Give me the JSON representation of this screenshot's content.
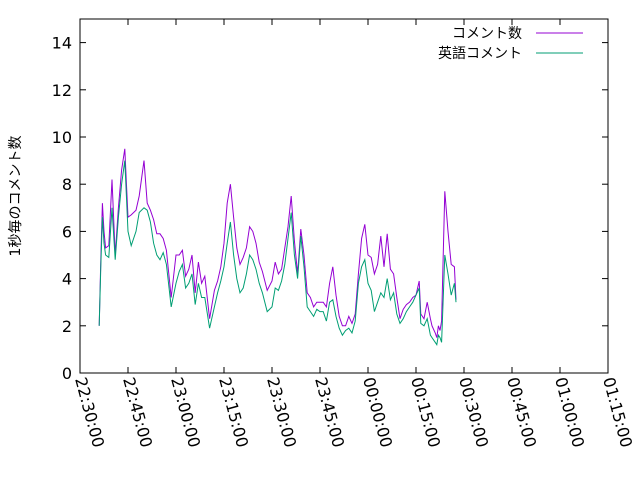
{
  "chart_data": {
    "type": "line",
    "ylabel": "1秒毎のコメント数",
    "ylim": [
      0,
      15
    ],
    "yticks": [
      0,
      2,
      4,
      6,
      8,
      10,
      12,
      14
    ],
    "xlim": [
      "22:30:00",
      "01:15:00"
    ],
    "xticks": [
      "22:30:00",
      "22:45:00",
      "23:00:00",
      "23:15:00",
      "23:30:00",
      "23:45:00",
      "00:00:00",
      "00:15:00",
      "00:30:00",
      "00:45:00",
      "01:00:00",
      "01:15:00"
    ],
    "legend_position": "top-right",
    "grid": false,
    "series": [
      {
        "name": "コメント数",
        "color": "#9400d3",
        "points": [
          [
            "22:36:00",
            2.0
          ],
          [
            "22:36:30",
            4.8
          ],
          [
            "22:37:00",
            7.2
          ],
          [
            "22:37:30",
            6.0
          ],
          [
            "22:38:00",
            5.3
          ],
          [
            "22:39:00",
            5.4
          ],
          [
            "22:40:00",
            8.2
          ],
          [
            "22:41:00",
            5.0
          ],
          [
            "22:42:00",
            7.0
          ],
          [
            "22:43:00",
            8.6
          ],
          [
            "22:44:00",
            9.5
          ],
          [
            "22:45:00",
            6.6
          ],
          [
            "22:46:00",
            6.7
          ],
          [
            "22:47:30",
            6.9
          ],
          [
            "22:48:30",
            7.5
          ],
          [
            "22:50:00",
            9.0
          ],
          [
            "22:51:00",
            7.2
          ],
          [
            "22:52:00",
            6.9
          ],
          [
            "22:53:00",
            6.5
          ],
          [
            "22:54:00",
            5.9
          ],
          [
            "22:55:00",
            5.9
          ],
          [
            "22:56:00",
            5.7
          ],
          [
            "22:57:00",
            5.2
          ],
          [
            "22:58:30",
            3.2
          ],
          [
            "23:00:00",
            5.0
          ],
          [
            "23:01:00",
            5.0
          ],
          [
            "23:02:00",
            5.2
          ],
          [
            "23:03:00",
            4.1
          ],
          [
            "23:04:00",
            4.4
          ],
          [
            "23:05:00",
            5.0
          ],
          [
            "23:06:00",
            3.4
          ],
          [
            "23:07:00",
            4.7
          ],
          [
            "23:08:00",
            3.8
          ],
          [
            "23:09:00",
            4.1
          ],
          [
            "23:10:30",
            2.3
          ],
          [
            "23:12:00",
            3.5
          ],
          [
            "23:13:00",
            3.9
          ],
          [
            "23:14:00",
            4.5
          ],
          [
            "23:15:00",
            5.5
          ],
          [
            "23:16:00",
            7.2
          ],
          [
            "23:17:00",
            8.0
          ],
          [
            "23:18:00",
            6.6
          ],
          [
            "23:19:00",
            5.3
          ],
          [
            "23:20:00",
            4.6
          ],
          [
            "23:21:00",
            4.9
          ],
          [
            "23:22:00",
            5.3
          ],
          [
            "23:23:00",
            6.2
          ],
          [
            "23:24:00",
            6.0
          ],
          [
            "23:25:00",
            5.5
          ],
          [
            "23:26:00",
            4.7
          ],
          [
            "23:27:00",
            4.3
          ],
          [
            "23:28:30",
            3.5
          ],
          [
            "23:30:00",
            3.9
          ],
          [
            "23:31:00",
            4.7
          ],
          [
            "23:32:00",
            4.2
          ],
          [
            "23:33:00",
            4.4
          ],
          [
            "23:34:00",
            5.3
          ],
          [
            "23:35:00",
            6.2
          ],
          [
            "23:36:00",
            7.5
          ],
          [
            "23:37:00",
            5.6
          ],
          [
            "23:38:00",
            4.2
          ],
          [
            "23:39:00",
            6.1
          ],
          [
            "23:40:00",
            5.0
          ],
          [
            "23:41:00",
            3.4
          ],
          [
            "23:42:00",
            3.2
          ],
          [
            "23:43:00",
            2.8
          ],
          [
            "23:44:00",
            3.0
          ],
          [
            "23:45:00",
            3.0
          ],
          [
            "23:46:00",
            3.0
          ],
          [
            "23:47:00",
            2.8
          ],
          [
            "23:48:00",
            3.8
          ],
          [
            "23:49:00",
            4.5
          ],
          [
            "23:50:00",
            3.3
          ],
          [
            "23:51:00",
            2.4
          ],
          [
            "23:52:00",
            2.0
          ],
          [
            "23:53:00",
            2.0
          ],
          [
            "23:54:00",
            2.4
          ],
          [
            "23:55:00",
            2.1
          ],
          [
            "23:56:00",
            2.5
          ],
          [
            "23:57:00",
            4.2
          ],
          [
            "23:58:00",
            5.7
          ],
          [
            "23:59:00",
            6.3
          ],
          [
            "00:00:00",
            5.0
          ],
          [
            "00:01:00",
            4.9
          ],
          [
            "00:02:00",
            4.2
          ],
          [
            "00:03:00",
            4.6
          ],
          [
            "00:04:00",
            5.8
          ],
          [
            "00:05:00",
            4.5
          ],
          [
            "00:06:00",
            5.9
          ],
          [
            "00:07:00",
            4.4
          ],
          [
            "00:08:00",
            4.2
          ],
          [
            "00:09:00",
            3.2
          ],
          [
            "00:10:00",
            2.3
          ],
          [
            "00:11:00",
            2.7
          ],
          [
            "00:12:00",
            2.9
          ],
          [
            "00:13:00",
            3.0
          ],
          [
            "00:14:00",
            3.2
          ],
          [
            "00:15:00",
            3.3
          ],
          [
            "00:16:00",
            3.9
          ],
          [
            "00:16:30",
            2.5
          ],
          [
            "00:17:30",
            2.3
          ],
          [
            "00:18:30",
            3.0
          ],
          [
            "00:19:30",
            2.3
          ],
          [
            "00:20:00",
            2.0
          ],
          [
            "00:21:00",
            1.7
          ],
          [
            "00:21:30",
            1.5
          ],
          [
            "00:22:00",
            2.0
          ],
          [
            "00:22:30",
            1.8
          ],
          [
            "00:23:00",
            2.2
          ],
          [
            "00:24:00",
            7.7
          ],
          [
            "00:25:00",
            6.0
          ],
          [
            "00:26:00",
            4.6
          ],
          [
            "00:27:00",
            4.5
          ],
          [
            "00:27:30",
            3.1
          ]
        ]
      },
      {
        "name": "英語コメント",
        "color": "#009e73",
        "points": [
          [
            "22:36:00",
            2.0
          ],
          [
            "22:36:30",
            4.5
          ],
          [
            "22:37:00",
            6.6
          ],
          [
            "22:37:30",
            5.5
          ],
          [
            "22:38:00",
            5.0
          ],
          [
            "22:39:00",
            4.9
          ],
          [
            "22:40:00",
            7.0
          ],
          [
            "22:41:00",
            4.8
          ],
          [
            "22:42:00",
            6.6
          ],
          [
            "22:43:00",
            8.0
          ],
          [
            "22:44:00",
            9.0
          ],
          [
            "22:45:00",
            6.0
          ],
          [
            "22:46:00",
            5.4
          ],
          [
            "22:47:30",
            6.0
          ],
          [
            "22:48:30",
            6.8
          ],
          [
            "22:50:00",
            7.0
          ],
          [
            "22:51:00",
            6.9
          ],
          [
            "22:52:00",
            6.4
          ],
          [
            "22:53:00",
            5.5
          ],
          [
            "22:54:00",
            5.0
          ],
          [
            "22:55:00",
            4.8
          ],
          [
            "22:56:00",
            5.1
          ],
          [
            "22:57:00",
            4.6
          ],
          [
            "22:58:30",
            2.8
          ],
          [
            "23:00:00",
            3.8
          ],
          [
            "23:01:00",
            4.3
          ],
          [
            "23:02:00",
            4.6
          ],
          [
            "23:03:00",
            3.6
          ],
          [
            "23:04:00",
            3.8
          ],
          [
            "23:05:00",
            4.2
          ],
          [
            "23:06:00",
            2.9
          ],
          [
            "23:07:00",
            3.8
          ],
          [
            "23:08:00",
            3.2
          ],
          [
            "23:09:00",
            3.2
          ],
          [
            "23:10:30",
            1.9
          ],
          [
            "23:12:00",
            2.8
          ],
          [
            "23:13:00",
            3.4
          ],
          [
            "23:14:00",
            3.9
          ],
          [
            "23:15:00",
            4.5
          ],
          [
            "23:16:00",
            5.5
          ],
          [
            "23:17:00",
            6.4
          ],
          [
            "23:18:00",
            5.0
          ],
          [
            "23:19:00",
            4.0
          ],
          [
            "23:20:00",
            3.4
          ],
          [
            "23:21:00",
            3.6
          ],
          [
            "23:22:00",
            4.2
          ],
          [
            "23:23:00",
            5.0
          ],
          [
            "23:24:00",
            4.8
          ],
          [
            "23:25:00",
            4.4
          ],
          [
            "23:26:00",
            3.8
          ],
          [
            "23:27:00",
            3.4
          ],
          [
            "23:28:30",
            2.6
          ],
          [
            "23:30:00",
            2.8
          ],
          [
            "23:31:00",
            3.6
          ],
          [
            "23:32:00",
            3.5
          ],
          [
            "23:33:00",
            3.9
          ],
          [
            "23:34:00",
            4.6
          ],
          [
            "23:35:00",
            5.7
          ],
          [
            "23:36:00",
            6.8
          ],
          [
            "23:37:00",
            5.0
          ],
          [
            "23:38:00",
            4.0
          ],
          [
            "23:39:00",
            5.8
          ],
          [
            "23:40:00",
            4.5
          ],
          [
            "23:41:00",
            2.8
          ],
          [
            "23:42:00",
            2.6
          ],
          [
            "23:43:00",
            2.4
          ],
          [
            "23:44:00",
            2.7
          ],
          [
            "23:45:00",
            2.6
          ],
          [
            "23:46:00",
            2.6
          ],
          [
            "23:47:00",
            2.2
          ],
          [
            "23:48:00",
            3.0
          ],
          [
            "23:49:00",
            3.1
          ],
          [
            "23:50:00",
            2.4
          ],
          [
            "23:51:00",
            1.9
          ],
          [
            "23:52:00",
            1.6
          ],
          [
            "23:53:00",
            1.8
          ],
          [
            "23:54:00",
            1.9
          ],
          [
            "23:55:00",
            1.7
          ],
          [
            "23:56:00",
            2.2
          ],
          [
            "23:57:00",
            3.8
          ],
          [
            "23:58:00",
            4.5
          ],
          [
            "23:59:00",
            4.8
          ],
          [
            "00:00:00",
            3.8
          ],
          [
            "00:01:00",
            3.5
          ],
          [
            "00:02:00",
            2.6
          ],
          [
            "00:03:00",
            3.0
          ],
          [
            "00:04:00",
            3.4
          ],
          [
            "00:05:00",
            3.2
          ],
          [
            "00:06:00",
            4.0
          ],
          [
            "00:07:00",
            3.1
          ],
          [
            "00:08:00",
            3.4
          ],
          [
            "00:09:00",
            2.5
          ],
          [
            "00:10:00",
            2.1
          ],
          [
            "00:11:00",
            2.3
          ],
          [
            "00:12:00",
            2.6
          ],
          [
            "00:13:00",
            2.8
          ],
          [
            "00:14:00",
            3.0
          ],
          [
            "00:15:00",
            3.3
          ],
          [
            "00:16:00",
            3.6
          ],
          [
            "00:16:30",
            2.1
          ],
          [
            "00:17:30",
            2.0
          ],
          [
            "00:18:30",
            2.3
          ],
          [
            "00:19:30",
            1.6
          ],
          [
            "00:20:00",
            1.5
          ],
          [
            "00:21:00",
            1.3
          ],
          [
            "00:21:30",
            1.2
          ],
          [
            "00:22:00",
            1.6
          ],
          [
            "00:22:30",
            1.5
          ],
          [
            "00:23:00",
            1.3
          ],
          [
            "00:24:00",
            5.0
          ],
          [
            "00:25:00",
            4.2
          ],
          [
            "00:26:00",
            3.3
          ],
          [
            "00:27:00",
            3.8
          ],
          [
            "00:27:30",
            3.0
          ]
        ]
      }
    ]
  }
}
